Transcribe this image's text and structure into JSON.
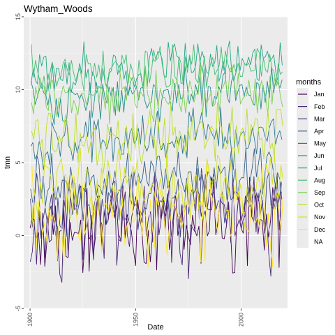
{
  "chart_data": {
    "type": "line",
    "title": "Wytham_Woods",
    "xlabel": "Date",
    "ylabel": "tmn",
    "xlim": [
      1897,
      2022
    ],
    "ylim": [
      -5,
      15
    ],
    "x_ticks": [
      1900,
      1950,
      2000
    ],
    "x_tick_labels": [
      "1900",
      "1950",
      "2000"
    ],
    "y_ticks": [
      -5,
      0,
      5,
      10,
      15
    ],
    "y_tick_labels": [
      "-5",
      "0",
      "5",
      "10",
      "15"
    ],
    "grid": true,
    "legend_title": "months",
    "legend_position": "right",
    "x_start": 1900,
    "x_end": 2019,
    "series": [
      {
        "name": "Jan",
        "color": "#440154",
        "mean": 0.6,
        "amplitude": 1.6,
        "min": -4.1,
        "max": 4.0
      },
      {
        "name": "Feb",
        "color": "#482576",
        "mean": 1.0,
        "amplitude": 1.7,
        "min": -4.0,
        "max": 4.2
      },
      {
        "name": "Mar",
        "color": "#414487",
        "mean": 2.1,
        "amplitude": 1.1,
        "min": -0.2,
        "max": 4.6
      },
      {
        "name": "Apr",
        "color": "#35608D",
        "mean": 3.7,
        "amplitude": 0.9,
        "min": 1.6,
        "max": 6.0
      },
      {
        "name": "May",
        "color": "#2A788E",
        "mean": 6.6,
        "amplitude": 0.9,
        "min": 4.5,
        "max": 9.0
      },
      {
        "name": "Jun",
        "color": "#21908C",
        "mean": 9.5,
        "amplitude": 0.8,
        "min": 7.5,
        "max": 11.6
      },
      {
        "name": "Jul",
        "color": "#22A884",
        "mean": 11.5,
        "amplitude": 0.8,
        "min": 9.5,
        "max": 14.0
      },
      {
        "name": "Aug",
        "color": "#43BF71",
        "mean": 11.3,
        "amplitude": 0.8,
        "min": 9.3,
        "max": 14.6
      },
      {
        "name": "Sep",
        "color": "#7AD151",
        "mean": 9.5,
        "amplitude": 0.9,
        "min": 7.2,
        "max": 12.0
      },
      {
        "name": "Oct",
        "color": "#BBDF27",
        "mean": 6.6,
        "amplitude": 1.1,
        "min": 3.8,
        "max": 9.5
      },
      {
        "name": "Nov",
        "color": "#D4E21A",
        "mean": 3.2,
        "amplitude": 1.2,
        "min": 0.2,
        "max": 6.0
      },
      {
        "name": "Dec",
        "color": "#FDE725",
        "mean": 1.4,
        "amplitude": 1.5,
        "min": -2.5,
        "max": 5.0
      },
      {
        "name": "NA",
        "color": "#ebebeb",
        "mean": null,
        "amplitude": null,
        "min": null,
        "max": null
      }
    ]
  }
}
